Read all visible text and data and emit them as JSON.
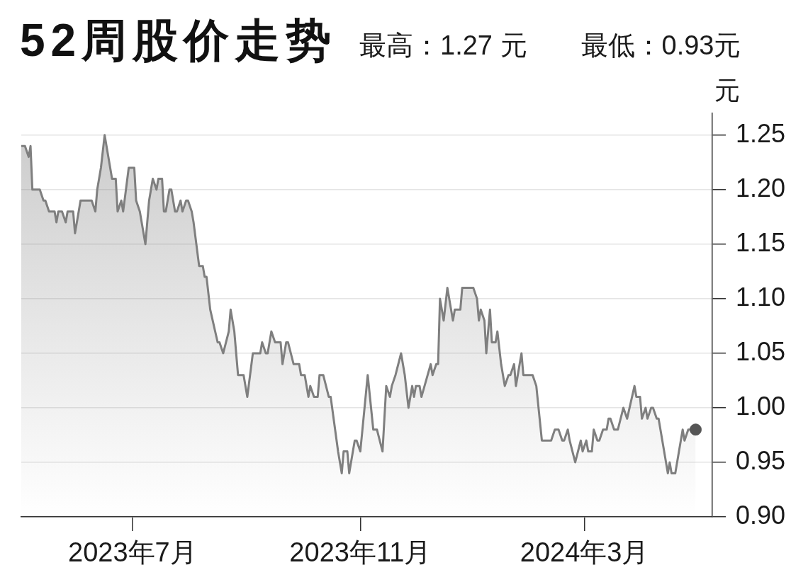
{
  "chart_data": {
    "type": "area",
    "title": "52周股价走势",
    "subtitle": "最高：1.27 元　　最低：0.93元",
    "ylabel": "元",
    "xlim": [
      "2023-05-02",
      "2024-05-09"
    ],
    "xticks": [
      {
        "value": "2023-07-01",
        "label": "2023年7月"
      },
      {
        "value": "2023-11-01",
        "label": "2023年11月"
      },
      {
        "value": "2024-03-01",
        "label": "2024年3月"
      }
    ],
    "ylim": [
      0.9,
      1.27
    ],
    "yticks": [
      {
        "value": 0.9,
        "label": "0.90"
      },
      0.95,
      {
        "value": 1,
        "label": "1.00"
      },
      1.05,
      {
        "value": 1.1,
        "label": "1.10"
      },
      1.15,
      {
        "value": 1.2,
        "label": "1.20"
      },
      1.25
    ],
    "grid": "y",
    "series": [
      {
        "color": "#7f7f7f",
        "x": [
          "2023-05-02",
          "2023-05-04",
          "2023-05-06",
          "2023-05-07",
          "2023-05-08",
          "2023-05-12",
          "2023-05-14",
          "2023-05-15",
          "2023-05-17",
          "2023-05-20",
          "2023-05-21",
          "2023-05-22",
          "2023-05-24",
          "2023-05-26",
          "2023-05-27",
          "2023-05-30",
          "2023-05-31",
          "2023-06-03",
          "2023-06-09",
          "2023-06-11",
          "2023-06-12",
          "2023-06-14",
          "2023-06-16",
          "2023-06-18",
          "2023-06-19",
          "2023-06-20",
          "2023-06-22",
          "2023-06-23",
          "2023-06-25",
          "2023-06-26",
          "2023-06-29",
          "2023-07-02",
          "2023-07-03",
          "2023-07-05",
          "2023-07-08",
          "2023-07-10",
          "2023-07-12",
          "2023-07-14",
          "2023-07-15",
          "2023-07-17",
          "2023-07-18",
          "2023-07-19",
          "2023-07-21",
          "2023-07-22",
          "2023-07-24",
          "2023-07-25",
          "2023-07-27",
          "2023-07-28",
          "2023-07-30",
          "2023-07-31",
          "2023-08-02",
          "2023-08-03",
          "2023-08-06",
          "2023-08-08",
          "2023-08-09",
          "2023-08-10",
          "2023-08-12",
          "2023-08-16",
          "2023-08-17",
          "2023-08-19",
          "2023-08-22",
          "2023-08-23",
          "2023-08-25",
          "2023-08-27",
          "2023-08-30",
          "2023-09-01",
          "2023-09-04",
          "2023-09-08",
          "2023-09-09",
          "2023-09-11",
          "2023-09-12",
          "2023-09-14",
          "2023-09-16",
          "2023-09-19",
          "2023-09-20",
          "2023-09-22",
          "2023-09-23",
          "2023-09-26",
          "2023-09-29",
          "2023-09-30",
          "2023-10-02",
          "2023-10-04",
          "2023-10-05",
          "2023-10-07",
          "2023-10-09",
          "2023-10-10",
          "2023-10-12",
          "2023-10-15",
          "2023-10-16",
          "2023-10-20",
          "2023-10-22",
          "2023-10-23",
          "2023-10-25",
          "2023-10-26",
          "2023-10-28",
          "2023-10-29",
          "2023-10-30",
          "2023-11-01",
          "2023-11-05",
          "2023-11-08",
          "2023-11-10",
          "2023-11-13",
          "2023-11-15",
          "2023-11-17",
          "2023-11-18",
          "2023-11-20",
          "2023-11-23",
          "2023-11-25",
          "2023-11-27",
          "2023-11-29",
          "2023-11-30",
          "2023-12-01",
          "2023-12-03",
          "2023-12-04",
          "2023-12-09",
          "2023-12-10",
          "2023-12-12",
          "2023-12-13",
          "2023-12-14",
          "2023-12-16",
          "2023-12-18",
          "2023-12-19",
          "2023-12-21",
          "2023-12-22",
          "2023-12-25",
          "2023-12-26",
          "2024-01-01",
          "2024-01-03",
          "2024-01-04",
          "2024-01-05",
          "2024-01-07",
          "2024-01-08",
          "2024-01-10",
          "2024-01-11",
          "2024-01-13",
          "2024-01-14",
          "2024-01-16",
          "2024-01-18",
          "2024-01-20",
          "2024-01-21",
          "2024-01-23",
          "2024-01-24",
          "2024-01-27",
          "2024-01-28",
          "2024-02-02",
          "2024-02-04",
          "2024-02-07",
          "2024-02-12",
          "2024-02-14",
          "2024-02-16",
          "2024-02-18",
          "2024-02-19",
          "2024-02-21",
          "2024-02-22",
          "2024-02-25",
          "2024-02-28",
          "2024-02-29",
          "2024-03-02",
          "2024-03-03",
          "2024-03-05",
          "2024-03-06",
          "2024-03-08",
          "2024-03-09",
          "2024-03-11",
          "2024-03-13",
          "2024-03-14",
          "2024-03-15",
          "2024-03-17",
          "2024-03-19",
          "2024-03-22",
          "2024-03-24",
          "2024-03-28",
          "2024-03-29",
          "2024-03-31",
          "2024-04-01",
          "2024-04-03",
          "2024-04-04",
          "2024-04-06",
          "2024-04-07",
          "2024-04-09",
          "2024-04-10",
          "2024-04-13",
          "2024-04-15",
          "2024-04-16",
          "2024-04-17",
          "2024-04-19",
          "2024-04-21",
          "2024-04-23",
          "2024-04-24",
          "2024-04-26",
          "2024-04-28",
          "2024-04-30"
        ],
        "values": [
          1.24,
          1.24,
          1.23,
          1.24,
          1.2,
          1.2,
          1.19,
          1.19,
          1.18,
          1.18,
          1.17,
          1.18,
          1.18,
          1.17,
          1.18,
          1.18,
          1.16,
          1.19,
          1.19,
          1.18,
          1.2,
          1.22,
          1.25,
          1.23,
          1.22,
          1.21,
          1.21,
          1.18,
          1.19,
          1.18,
          1.22,
          1.22,
          1.19,
          1.18,
          1.15,
          1.19,
          1.21,
          1.2,
          1.21,
          1.21,
          1.18,
          1.18,
          1.2,
          1.2,
          1.18,
          1.18,
          1.19,
          1.18,
          1.19,
          1.19,
          1.18,
          1.17,
          1.13,
          1.13,
          1.12,
          1.12,
          1.09,
          1.06,
          1.06,
          1.05,
          1.07,
          1.09,
          1.07,
          1.03,
          1.03,
          1.01,
          1.05,
          1.05,
          1.06,
          1.05,
          1.05,
          1.07,
          1.06,
          1.06,
          1.04,
          1.06,
          1.06,
          1.04,
          1.04,
          1.03,
          1.03,
          1.01,
          1.02,
          1.01,
          1.01,
          1.03,
          1.03,
          1.01,
          1.01,
          0.96,
          0.94,
          0.96,
          0.96,
          0.94,
          0.96,
          0.97,
          0.97,
          0.96,
          1.03,
          0.98,
          0.98,
          0.96,
          1.02,
          1.01,
          1.02,
          1.03,
          1.05,
          1.03,
          1.0,
          1.02,
          1.01,
          1.02,
          1.02,
          1.01,
          1.04,
          1.03,
          1.04,
          1.04,
          1.1,
          1.08,
          1.11,
          1.1,
          1.08,
          1.09,
          1.09,
          1.11,
          1.11,
          1.1,
          1.08,
          1.09,
          1.08,
          1.05,
          1.09,
          1.06,
          1.06,
          1.07,
          1.04,
          1.02,
          1.03,
          1.03,
          1.04,
          1.02,
          1.05,
          1.03,
          1.03,
          1.02,
          0.97,
          0.97,
          0.98,
          0.98,
          0.97,
          0.97,
          0.98,
          0.97,
          0.95,
          0.97,
          0.96,
          0.97,
          0.96,
          0.96,
          0.98,
          0.97,
          0.97,
          0.98,
          0.98,
          0.99,
          0.99,
          0.98,
          0.98,
          1.0,
          0.99,
          1.02,
          1.01,
          1.01,
          0.99,
          1.0,
          0.99,
          1.0,
          1.0,
          0.99,
          0.99,
          0.96,
          0.94,
          0.95,
          0.94,
          0.94,
          0.96,
          0.98,
          0.97,
          0.98,
          0.98,
          0.98
        ]
      },
      {
        "type": "scatter",
        "color": "#555555",
        "marker": "circle",
        "x": [
          "2024-04-30"
        ],
        "values": [
          0.98
        ]
      }
    ]
  }
}
